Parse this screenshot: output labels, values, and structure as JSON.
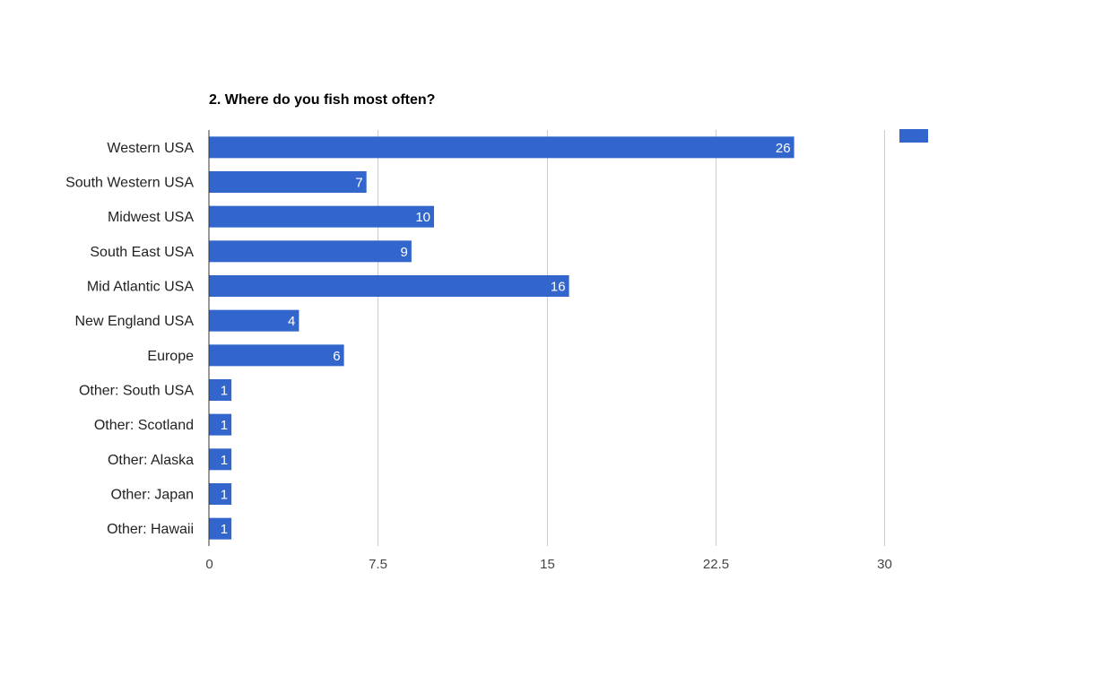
{
  "chart_data": {
    "type": "bar",
    "orientation": "horizontal",
    "title": "2. Where do you fish most often?",
    "xlabel": "",
    "ylabel": "",
    "categories": [
      "Western USA",
      "South Western USA",
      "Midwest USA",
      "South East USA",
      "Mid Atlantic USA",
      "New England USA",
      "Europe",
      "Other: South USA",
      "Other: Scotland",
      "Other: Alaska",
      "Other: Japan",
      "Other: Hawaii"
    ],
    "values": [
      26,
      7,
      10,
      9,
      16,
      4,
      6,
      1,
      1,
      1,
      1,
      1
    ],
    "xlim": [
      0,
      30
    ],
    "xticks": [
      "0",
      "7.5",
      "15",
      "22.5",
      "30"
    ],
    "tick_values": [
      0,
      7.5,
      15,
      22.5,
      30
    ],
    "grid": true,
    "legend": "top-right",
    "colors": {
      "bar": "#3366cc",
      "grid": "#cccccc",
      "axis": "#333333"
    }
  }
}
